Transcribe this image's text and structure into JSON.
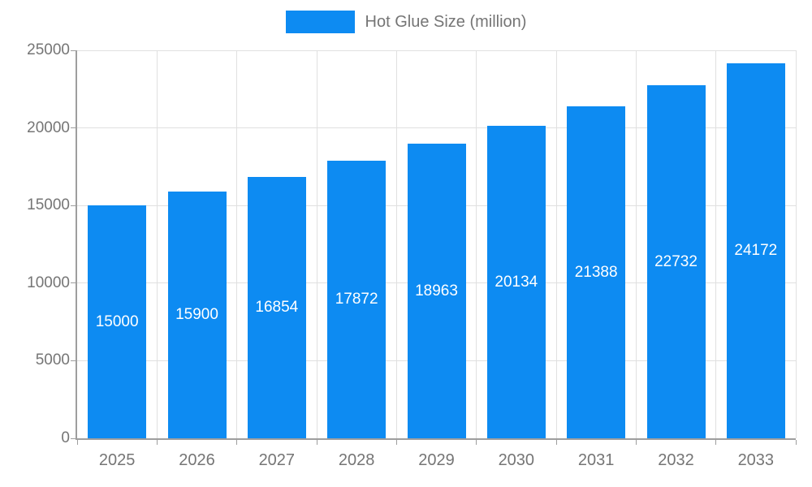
{
  "chart_data": {
    "type": "bar",
    "title": "Hot Glue Size (million)",
    "legend": {
      "label": "Hot Glue Size (million)",
      "position": "top"
    },
    "categories": [
      "2025",
      "2026",
      "2027",
      "2028",
      "2029",
      "2030",
      "2031",
      "2032",
      "2033"
    ],
    "values": [
      15000,
      15900,
      16854,
      17872,
      18963,
      20134,
      21388,
      22732,
      24172
    ],
    "data_labels": [
      "15000",
      "15900",
      "16854",
      "17872",
      "18963",
      "20134",
      "21388",
      "22732",
      "24172"
    ],
    "xlabel": "",
    "ylabel": "",
    "ylim": [
      0,
      25000
    ],
    "yticks": [
      0,
      5000,
      10000,
      15000,
      20000,
      25000
    ],
    "grid": true,
    "legend_visible": true,
    "colors": {
      "bar": "#0D8BF2",
      "bar_label_text": "#ffffff",
      "axis_text": "#757575",
      "axis_line": "#9e9e9e",
      "gridline": "#e0e0e0",
      "background": "#ffffff"
    }
  }
}
